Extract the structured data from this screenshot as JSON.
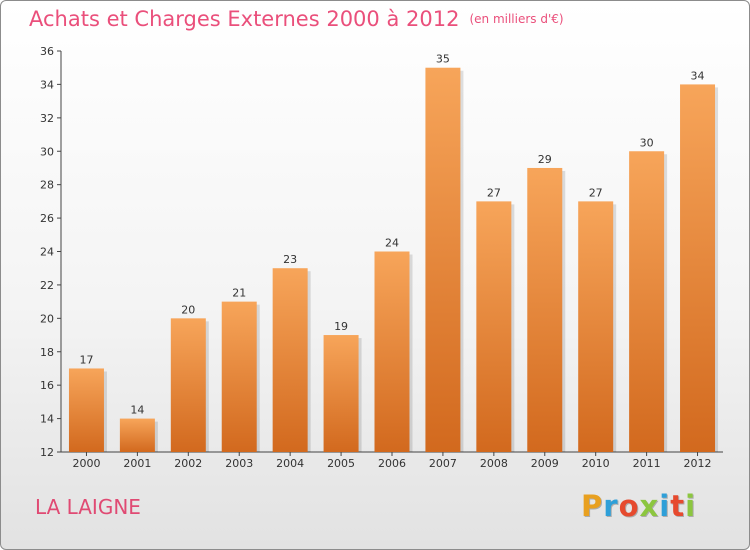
{
  "header": {
    "title": "Achats et Charges Externes 2000 à 2012",
    "unit": "(en milliers d'€)"
  },
  "footer": {
    "place": "LA LAIGNE",
    "logo": "Proxiti"
  },
  "colors": {
    "title": "#ea4f7b",
    "bar_top": "#f7a55a",
    "bar_bottom": "#d2691e",
    "logo_letters": [
      "#e8a020",
      "#2e9fd8",
      "#e64a2e",
      "#8cc63f",
      "#2e9fd8",
      "#e64a2e",
      "#8cc63f"
    ]
  },
  "chart_data": {
    "type": "bar",
    "title": "Achats et Charges Externes 2000 à 2012",
    "subtitle": "(en milliers d'€)",
    "categories": [
      "2000",
      "2001",
      "2002",
      "2003",
      "2004",
      "2005",
      "2006",
      "2007",
      "2008",
      "2009",
      "2010",
      "2011",
      "2012"
    ],
    "values": [
      17,
      14,
      20,
      21,
      23,
      19,
      24,
      35,
      27,
      29,
      27,
      30,
      34
    ],
    "ylim": [
      12,
      36
    ],
    "yticks": [
      12,
      14,
      16,
      18,
      20,
      22,
      24,
      26,
      28,
      30,
      32,
      34,
      36
    ],
    "grid": false,
    "xlabel": "",
    "ylabel": ""
  }
}
